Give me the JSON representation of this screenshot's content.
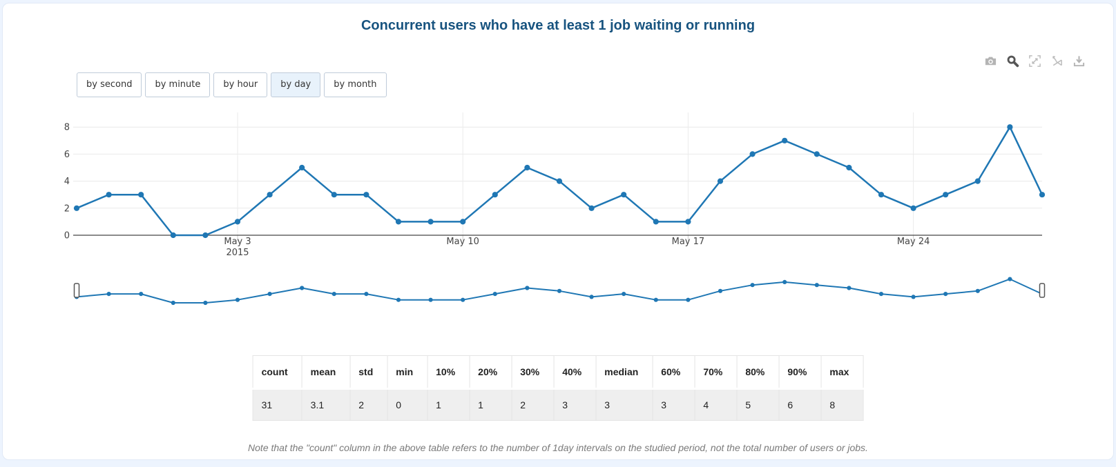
{
  "page": {
    "title": "Concurrent users who have at least 1 job waiting or running"
  },
  "toolbar": {
    "icons": [
      {
        "name": "camera",
        "active": false
      },
      {
        "name": "zoom",
        "active": true
      },
      {
        "name": "autoscale",
        "active": false
      },
      {
        "name": "reset-axes",
        "active": false
      },
      {
        "name": "download",
        "active": false
      }
    ]
  },
  "interval_buttons": [
    {
      "label": "by second",
      "active": false
    },
    {
      "label": "by minute",
      "active": false
    },
    {
      "label": "by hour",
      "active": false
    },
    {
      "label": "by day",
      "active": true
    },
    {
      "label": "by month",
      "active": false
    }
  ],
  "chart_data": {
    "type": "line",
    "title": "Concurrent users who have at least 1 job waiting or running",
    "x_unit": "day",
    "n_points": 31,
    "series": [
      {
        "name": "concurrent-users",
        "values": [
          2,
          3,
          3,
          0,
          0,
          1,
          3,
          5,
          3,
          3,
          1,
          1,
          1,
          3,
          5,
          4,
          2,
          3,
          1,
          1,
          4,
          6,
          7,
          6,
          5,
          3,
          2,
          3,
          4,
          8,
          3
        ]
      }
    ],
    "x_ticks": [
      {
        "index": 5,
        "label": "May 3",
        "sublabel": "2015"
      },
      {
        "index": 12,
        "label": "May 10",
        "sublabel": ""
      },
      {
        "index": 19,
        "label": "May 17",
        "sublabel": ""
      },
      {
        "index": 26,
        "label": "May 24",
        "sublabel": ""
      }
    ],
    "y_ticks": [
      0,
      2,
      4,
      6,
      8
    ],
    "ylim": [
      0,
      8
    ],
    "line_color": "#1f77b4",
    "grid": true,
    "legend": "none",
    "rangeslider": true
  },
  "stats_table": {
    "headers": [
      "count",
      "mean",
      "std",
      "min",
      "10%",
      "20%",
      "30%",
      "40%",
      "median",
      "60%",
      "70%",
      "80%",
      "90%",
      "max"
    ],
    "values": [
      "31",
      "3.1",
      "2",
      "0",
      "1",
      "1",
      "2",
      "3",
      "3",
      "3",
      "4",
      "5",
      "6",
      "8"
    ]
  },
  "footnote": "Note that the \"count\" column in the above table refers to the number of 1day intervals on the studied period, not the total number of users or jobs.",
  "colors": {
    "line": "#1f77b4",
    "title": "#17537f",
    "active_button_bg": "#e8f2fb",
    "page_bg": "#edf4fe"
  }
}
